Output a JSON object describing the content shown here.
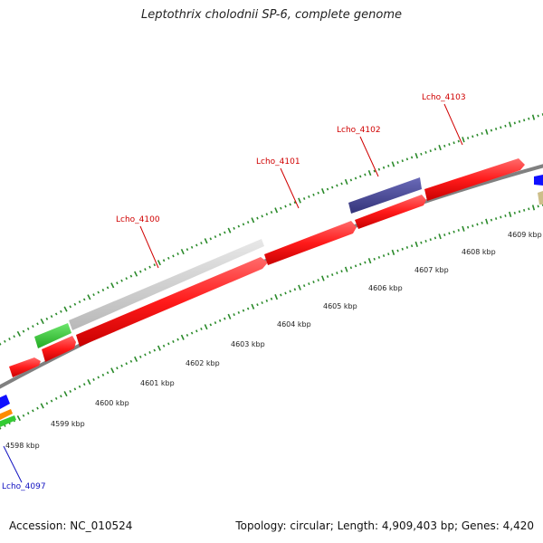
{
  "title": "Leptothrix cholodnii SP-6, complete genome",
  "footer": {
    "accession": "Accession: NC_010524",
    "stats": "Topology: circular; Length: 4,909,403 bp; Genes: 4,420"
  },
  "scale_labels": [
    "4598 kbp",
    "4599 kbp",
    "4600 kbp",
    "4601 kbp",
    "4602 kbp",
    "4603 kbp",
    "4604 kbp",
    "4605 kbp",
    "4606 kbp",
    "4607 kbp",
    "4608 kbp",
    "4609 kbp"
  ],
  "gene_labels": [
    {
      "name": "Lcho_4097",
      "color": "#1010c0"
    },
    {
      "name": "Lcho_4100",
      "color": "#d00000"
    },
    {
      "name": "Lcho_4101",
      "color": "#d00000"
    },
    {
      "name": "Lcho_4102",
      "color": "#d00000"
    },
    {
      "name": "Lcho_4103",
      "color": "#d00000"
    }
  ],
  "colors": {
    "forward_cds": "#ff1a1a",
    "reverse_gray": "#c8c8c8",
    "reverse_green": "#33cc33",
    "reverse_purple": "#4a4a9a",
    "blue": "#1010ff",
    "orange": "#ff8c00",
    "tan": "#cdbf8a",
    "backbone": "#888888",
    "ticks": "#2a8a2a"
  }
}
